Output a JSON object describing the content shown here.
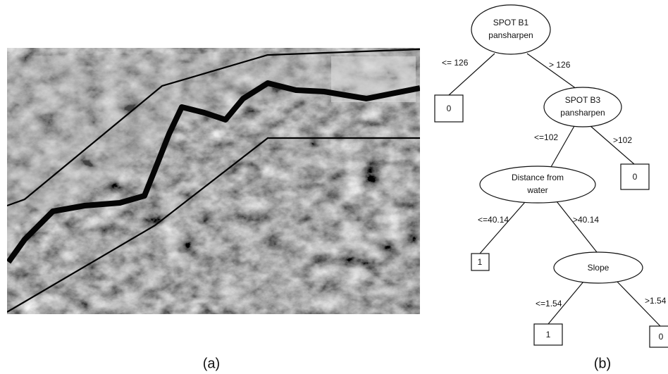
{
  "panel_a": {
    "caption": "(a)"
  },
  "panel_b": {
    "caption": "(b)"
  },
  "tree": {
    "nodes": [
      {
        "lines": [
          "SPOT B1",
          "pansharpen"
        ]
      },
      {
        "lines": [
          "0"
        ]
      },
      {
        "lines": [
          "SPOT B3",
          "pansharpen"
        ]
      },
      {
        "lines": [
          "0"
        ]
      },
      {
        "lines": [
          "Distance from",
          "water"
        ]
      },
      {
        "lines": [
          "1"
        ]
      },
      {
        "lines": [
          "Slope"
        ]
      },
      {
        "lines": [
          "1"
        ]
      },
      {
        "lines": [
          "0"
        ]
      }
    ],
    "edges": [
      {
        "label": "<= 126"
      },
      {
        "label": "> 126"
      },
      {
        "label": "<=102"
      },
      {
        "label": ">102"
      },
      {
        "label": "<=40.14"
      },
      {
        "label": ">40.14"
      },
      {
        "label": "<=1.54"
      },
      {
        "label": ">1.54"
      }
    ]
  }
}
